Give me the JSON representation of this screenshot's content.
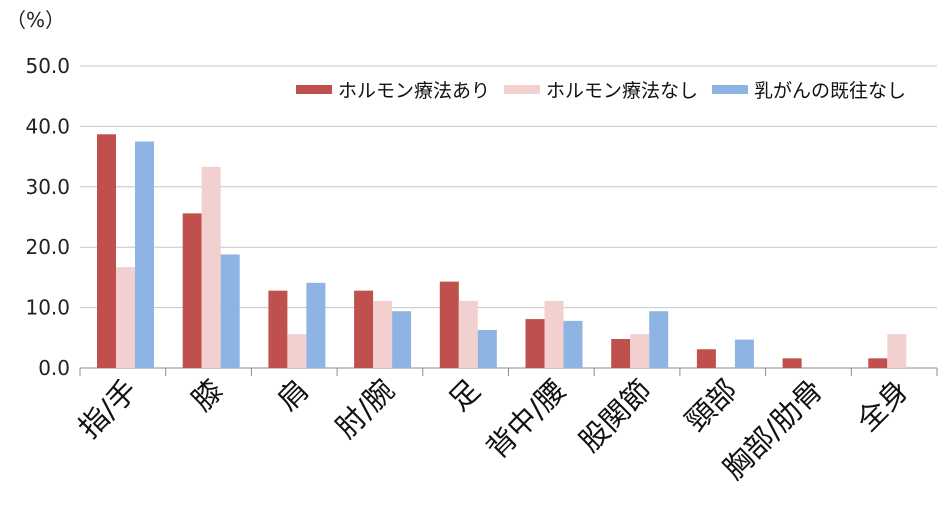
{
  "chart_data": {
    "type": "bar",
    "unit_label": "（%）",
    "categories": [
      "指/手",
      "膝",
      "肩",
      "肘/腕",
      "足",
      "背中/腰",
      "股関節",
      "頸部",
      "胸部/肋骨",
      "全身"
    ],
    "series": [
      {
        "name": "ホルモン療法あり",
        "color": "#c0504d",
        "values": [
          38.7,
          25.6,
          12.8,
          12.8,
          14.3,
          8.1,
          4.8,
          3.1,
          1.6,
          1.6
        ]
      },
      {
        "name": "ホルモン療法なし",
        "color": "#f2d0d0",
        "values": [
          16.7,
          33.3,
          5.6,
          11.1,
          11.1,
          11.1,
          5.6,
          0,
          0,
          5.6
        ]
      },
      {
        "name": "乳がんの既往なし",
        "color": "#8db4e2",
        "values": [
          37.5,
          18.8,
          14.1,
          9.4,
          6.3,
          7.8,
          9.4,
          4.7,
          0,
          0
        ]
      }
    ],
    "ylim": [
      0,
      50
    ],
    "yticks": [
      "0.0",
      "10.0",
      "20.0",
      "30.0",
      "40.0",
      "50.0"
    ],
    "grid": true,
    "legend_position": "top-right"
  }
}
